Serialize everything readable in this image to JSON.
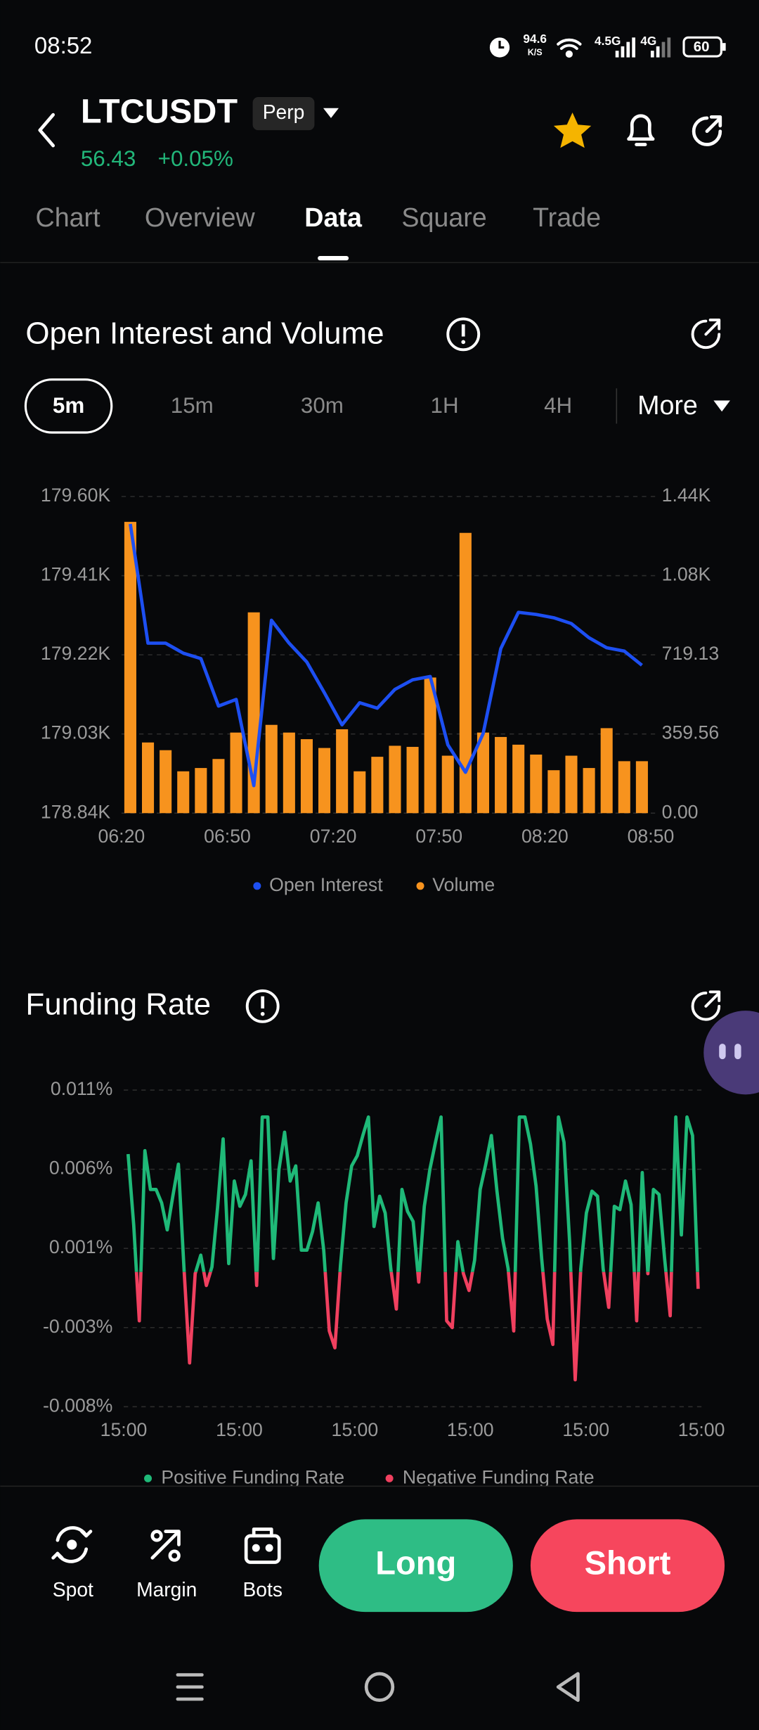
{
  "status_bar": {
    "time": "08:52",
    "net_speed": "94.6",
    "net_unit": "K/S",
    "signal_1": "4.5G",
    "signal_2": "4G",
    "battery": "60"
  },
  "header": {
    "symbol": "LTCUSDT",
    "contract": "Perp",
    "price": "56.43",
    "change": "+0.05%"
  },
  "tabs": [
    "Chart",
    "Overview",
    "Data",
    "Square",
    "Trade"
  ],
  "active_tab": 2,
  "intervals": [
    "5m",
    "15m",
    "30m",
    "1H",
    "4H"
  ],
  "active_interval": 0,
  "more": "More",
  "chart_data": [
    {
      "type": "combo",
      "title": "Open Interest and Volume",
      "xticks": [
        "06:20",
        "06:50",
        "07:20",
        "07:50",
        "08:20",
        "08:50"
      ],
      "ylim": [
        178840,
        179600
      ],
      "yticks": [
        {
          "value": 178840,
          "label": "178.84K"
        },
        {
          "value": 179030,
          "label": "179.03K"
        },
        {
          "value": 179220,
          "label": "179.22K"
        },
        {
          "value": 179410,
          "label": "179.41K"
        },
        {
          "value": 179600,
          "label": "179.60K"
        }
      ],
      "y2lim": [
        0,
        1438.25
      ],
      "y2ticks": [
        {
          "value": 0,
          "label": "0.00"
        },
        359.56,
        719.13,
        {
          "value": 1078.69,
          "label": "1.08K"
        },
        {
          "value": 1438.25,
          "label": "1.44K"
        }
      ],
      "grid": true,
      "legend": "bottom",
      "series": [
        {
          "name": "Volume",
          "type": "bar",
          "axis": "y2",
          "color": "#f7931e",
          "values": [
            1323,
            321,
            286,
            190,
            205,
            246,
            366,
            912,
            401,
            366,
            336,
            296,
            381,
            190,
            256,
            306,
            301,
            616,
            261,
            1273,
            366,
            346,
            311,
            266,
            195,
            261,
            205,
            386,
            236,
            236
          ]
        },
        {
          "name": "Open Interest",
          "type": "line",
          "color": "#1d4ff2",
          "values": [
            179534,
            179248,
            179248,
            179224,
            179211,
            179097,
            179113,
            178906,
            179303,
            179248,
            179203,
            179129,
            179052,
            179105,
            179092,
            179137,
            179160,
            179168,
            179004,
            178938,
            179031,
            179235,
            179322,
            179317,
            179309,
            179295,
            179261,
            179237,
            179229,
            179195
          ]
        }
      ]
    },
    {
      "type": "line",
      "title": "Funding Rate",
      "xticks": [
        "15:00",
        "15:00",
        "15:00",
        "15:00",
        "15:00",
        "15:00"
      ],
      "ylim": [
        -0.008,
        0.0108
      ],
      "yticks": [
        {
          "value": -0.008,
          "label": "-0.008%"
        },
        {
          "value": -0.0033,
          "label": "-0.003%"
        },
        {
          "value": 0.0014,
          "label": "0.001%"
        },
        {
          "value": 0.0061,
          "label": "0.006%"
        },
        {
          "value": 0.0108,
          "label": "0.011%"
        }
      ],
      "grid": true,
      "color": "#1fb978",
      "negative_color": "#f0405f",
      "legend_items": [
        {
          "name": "Positive Funding Rate",
          "color": "#1fb978"
        },
        {
          "name": "Negative Funding Rate",
          "color": "#f0405f"
        }
      ],
      "values": [
        0.007,
        0.0028,
        -0.0029,
        0.0072,
        0.0049,
        0.0049,
        0.0041,
        0.0025,
        0.0045,
        0.0064,
        0.0002,
        -0.0054,
        -0.0001,
        0.001,
        -0.0008,
        0.0003,
        0.0038,
        0.0079,
        0.0005,
        0.0054,
        0.0039,
        0.0046,
        0.0066,
        -0.0008,
        0.0092,
        0.0092,
        0.0008,
        0.0061,
        0.0083,
        0.0054,
        0.0063,
        0.0013,
        0.0013,
        0.0024,
        0.0041,
        0.0013,
        -0.0035,
        -0.0045,
        0.0004,
        0.0041,
        0.0063,
        0.0069,
        0.0081,
        0.0092,
        0.0027,
        0.0045,
        0.0035,
        0.0002,
        -0.0022,
        0.0049,
        0.0036,
        0.003,
        -0.0006,
        0.0039,
        0.0061,
        0.0077,
        0.0092,
        -0.0029,
        -0.0033,
        0.0018,
        -0.0001,
        -0.0011,
        0.0007,
        0.0049,
        0.0064,
        0.0081,
        0.0048,
        0.002,
        0.0002,
        -0.0035,
        0.0092,
        0.0092,
        0.0076,
        0.0051,
        0.0008,
        -0.0028,
        -0.0043,
        0.0092,
        0.0077,
        0.0018,
        -0.0064,
        0.0002,
        0.0035,
        0.0048,
        0.0045,
        0.0002,
        -0.0021,
        0.0039,
        0.0037,
        0.0054,
        0.004,
        -0.0029,
        0.0059,
        -0.0001,
        0.0049,
        0.0046,
        0.0008,
        -0.0026,
        0.0092,
        0.0022,
        0.0092,
        0.0081,
        -0.001
      ]
    }
  ],
  "actions": [
    "Spot",
    "Margin",
    "Bots"
  ],
  "buttons": {
    "long": "Long",
    "short": "Short"
  }
}
